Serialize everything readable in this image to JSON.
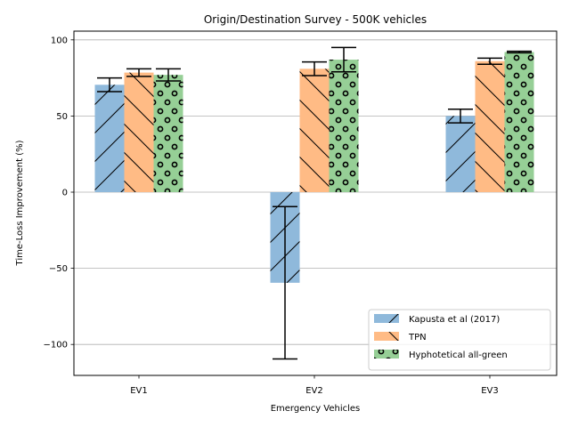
{
  "chart_data": {
    "type": "bar",
    "title": "Origin/Destination Survey - 500K vehicles",
    "xlabel": "Emergency Vehicles",
    "ylabel": "Time-Loss Improvement (%)",
    "categories": [
      "EV1",
      "EV2",
      "EV3"
    ],
    "ylim": [
      -120,
      106
    ],
    "yticks": [
      -100,
      -50,
      0,
      50,
      100
    ],
    "yticklabels": [
      "−100",
      "−50",
      "0",
      "50",
      "100"
    ],
    "grid": "y",
    "legend_position": "lower-right",
    "series": [
      {
        "name": "Kapusta et al (2017)",
        "color": "#8fb9db",
        "hatch": "diagonal-forward",
        "values": [
          70.5,
          -59.5,
          50
        ],
        "errors": [
          4.5,
          50,
          4.5
        ]
      },
      {
        "name": "TPN",
        "color": "#ffbb85",
        "hatch": "diagonal-back",
        "values": [
          78.5,
          81,
          86
        ],
        "errors": [
          2.5,
          4.5,
          2
        ]
      },
      {
        "name": "Hyphotetical all-green",
        "color": "#96cf96",
        "hatch": "circles",
        "values": [
          77,
          87,
          92
        ],
        "errors": [
          4,
          8,
          0.5
        ]
      }
    ]
  }
}
